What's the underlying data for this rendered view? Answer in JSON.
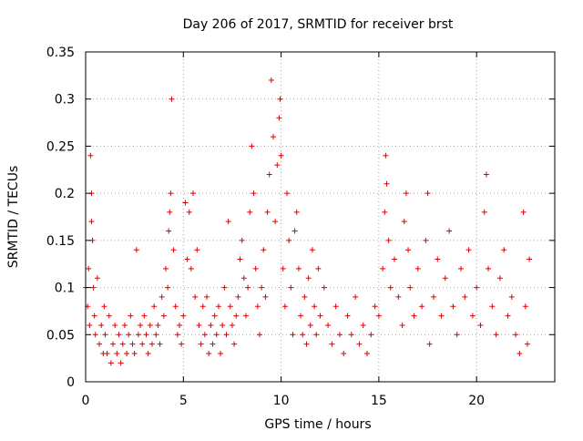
{
  "chart_data": {
    "type": "scatter",
    "title": "Day 206 of 2017, SRMTID for receiver brst",
    "xlabel": "GPS time / hours",
    "ylabel": "SRMTID / TECUs",
    "xlim": [
      0,
      24
    ],
    "ylim": [
      0,
      0.35
    ],
    "xticks": [
      0,
      5,
      10,
      15,
      20
    ],
    "xtick_labels": [
      "0",
      "5",
      "10",
      "15",
      "20"
    ],
    "yticks": [
      0,
      0.05,
      0.1,
      0.15,
      0.2,
      0.25,
      0.3,
      0.35
    ],
    "ytick_labels": [
      "0",
      "0.05",
      "0.1",
      "0.15",
      "0.2",
      "0.25",
      "0.3",
      "0.35"
    ],
    "grid": true,
    "marker": "+",
    "color": "#e00000",
    "series": [
      {
        "name": "SRMTID",
        "points": [
          [
            0.0,
            0.1
          ],
          [
            0.1,
            0.08
          ],
          [
            0.15,
            0.12
          ],
          [
            0.2,
            0.06
          ],
          [
            0.25,
            0.24
          ],
          [
            0.3,
            0.17
          ],
          [
            0.3,
            0.2
          ],
          [
            0.35,
            0.15
          ],
          [
            0.4,
            0.1
          ],
          [
            0.45,
            0.07
          ],
          [
            0.5,
            0.05
          ],
          [
            0.6,
            0.11
          ],
          [
            0.7,
            0.04
          ],
          [
            0.8,
            0.06
          ],
          [
            0.9,
            0.03
          ],
          [
            0.95,
            0.08
          ],
          [
            1.0,
            0.05
          ],
          [
            1.1,
            0.03
          ],
          [
            1.2,
            0.07
          ],
          [
            1.3,
            0.02
          ],
          [
            1.4,
            0.04
          ],
          [
            1.5,
            0.06
          ],
          [
            1.6,
            0.03
          ],
          [
            1.7,
            0.05
          ],
          [
            1.8,
            0.02
          ],
          [
            1.9,
            0.04
          ],
          [
            2.0,
            0.06
          ],
          [
            2.1,
            0.03
          ],
          [
            2.2,
            0.05
          ],
          [
            2.3,
            0.07
          ],
          [
            2.4,
            0.04
          ],
          [
            2.5,
            0.03
          ],
          [
            2.6,
            0.14
          ],
          [
            2.7,
            0.05
          ],
          [
            2.8,
            0.06
          ],
          [
            2.9,
            0.04
          ],
          [
            3.0,
            0.07
          ],
          [
            3.1,
            0.05
          ],
          [
            3.2,
            0.03
          ],
          [
            3.3,
            0.06
          ],
          [
            3.4,
            0.04
          ],
          [
            3.5,
            0.08
          ],
          [
            3.6,
            0.05
          ],
          [
            3.7,
            0.06
          ],
          [
            3.8,
            0.04
          ],
          [
            3.9,
            0.09
          ],
          [
            4.0,
            0.07
          ],
          [
            4.1,
            0.12
          ],
          [
            4.2,
            0.1
          ],
          [
            4.25,
            0.16
          ],
          [
            4.3,
            0.18
          ],
          [
            4.35,
            0.2
          ],
          [
            4.4,
            0.3
          ],
          [
            4.5,
            0.14
          ],
          [
            4.6,
            0.08
          ],
          [
            4.7,
            0.05
          ],
          [
            4.8,
            0.06
          ],
          [
            4.9,
            0.04
          ],
          [
            5.0,
            0.07
          ],
          [
            5.1,
            0.19
          ],
          [
            5.2,
            0.13
          ],
          [
            5.3,
            0.18
          ],
          [
            5.4,
            0.12
          ],
          [
            5.5,
            0.2
          ],
          [
            5.6,
            0.09
          ],
          [
            5.7,
            0.14
          ],
          [
            5.8,
            0.06
          ],
          [
            5.9,
            0.04
          ],
          [
            6.0,
            0.08
          ],
          [
            6.1,
            0.05
          ],
          [
            6.2,
            0.09
          ],
          [
            6.3,
            0.03
          ],
          [
            6.4,
            0.06
          ],
          [
            6.5,
            0.04
          ],
          [
            6.6,
            0.07
          ],
          [
            6.7,
            0.05
          ],
          [
            6.8,
            0.08
          ],
          [
            6.9,
            0.03
          ],
          [
            7.0,
            0.06
          ],
          [
            7.1,
            0.1
          ],
          [
            7.2,
            0.05
          ],
          [
            7.3,
            0.17
          ],
          [
            7.4,
            0.08
          ],
          [
            7.5,
            0.06
          ],
          [
            7.6,
            0.04
          ],
          [
            7.7,
            0.07
          ],
          [
            7.8,
            0.09
          ],
          [
            7.9,
            0.13
          ],
          [
            8.0,
            0.15
          ],
          [
            8.1,
            0.11
          ],
          [
            8.2,
            0.07
          ],
          [
            8.3,
            0.1
          ],
          [
            8.4,
            0.18
          ],
          [
            8.5,
            0.25
          ],
          [
            8.6,
            0.2
          ],
          [
            8.7,
            0.12
          ],
          [
            8.8,
            0.08
          ],
          [
            8.9,
            0.05
          ],
          [
            9.0,
            0.1
          ],
          [
            9.1,
            0.14
          ],
          [
            9.2,
            0.09
          ],
          [
            9.3,
            0.18
          ],
          [
            9.4,
            0.22
          ],
          [
            9.5,
            0.32
          ],
          [
            9.6,
            0.26
          ],
          [
            9.7,
            0.17
          ],
          [
            9.8,
            0.23
          ],
          [
            9.9,
            0.28
          ],
          [
            9.95,
            0.3
          ],
          [
            10.0,
            0.24
          ],
          [
            10.1,
            0.12
          ],
          [
            10.2,
            0.08
          ],
          [
            10.3,
            0.2
          ],
          [
            10.4,
            0.15
          ],
          [
            10.5,
            0.1
          ],
          [
            10.6,
            0.05
          ],
          [
            10.7,
            0.16
          ],
          [
            10.8,
            0.18
          ],
          [
            10.9,
            0.12
          ],
          [
            11.0,
            0.07
          ],
          [
            11.1,
            0.05
          ],
          [
            11.2,
            0.09
          ],
          [
            11.3,
            0.04
          ],
          [
            11.4,
            0.11
          ],
          [
            11.5,
            0.06
          ],
          [
            11.6,
            0.14
          ],
          [
            11.7,
            0.08
          ],
          [
            11.8,
            0.05
          ],
          [
            11.9,
            0.12
          ],
          [
            12.0,
            0.07
          ],
          [
            12.2,
            0.1
          ],
          [
            12.4,
            0.06
          ],
          [
            12.6,
            0.04
          ],
          [
            12.8,
            0.08
          ],
          [
            13.0,
            0.05
          ],
          [
            13.2,
            0.03
          ],
          [
            13.4,
            0.07
          ],
          [
            13.6,
            0.05
          ],
          [
            13.8,
            0.09
          ],
          [
            14.0,
            0.04
          ],
          [
            14.2,
            0.06
          ],
          [
            14.4,
            0.03
          ],
          [
            14.6,
            0.05
          ],
          [
            14.8,
            0.08
          ],
          [
            15.0,
            0.07
          ],
          [
            15.2,
            0.12
          ],
          [
            15.3,
            0.18
          ],
          [
            15.35,
            0.24
          ],
          [
            15.4,
            0.21
          ],
          [
            15.5,
            0.15
          ],
          [
            15.6,
            0.1
          ],
          [
            15.8,
            0.13
          ],
          [
            16.0,
            0.09
          ],
          [
            16.2,
            0.06
          ],
          [
            16.3,
            0.17
          ],
          [
            16.4,
            0.2
          ],
          [
            16.5,
            0.14
          ],
          [
            16.6,
            0.1
          ],
          [
            16.8,
            0.07
          ],
          [
            17.0,
            0.12
          ],
          [
            17.2,
            0.08
          ],
          [
            17.4,
            0.15
          ],
          [
            17.5,
            0.2
          ],
          [
            17.6,
            0.04
          ],
          [
            17.8,
            0.09
          ],
          [
            18.0,
            0.13
          ],
          [
            18.2,
            0.07
          ],
          [
            18.4,
            0.11
          ],
          [
            18.6,
            0.16
          ],
          [
            18.8,
            0.08
          ],
          [
            19.0,
            0.05
          ],
          [
            19.2,
            0.12
          ],
          [
            19.4,
            0.09
          ],
          [
            19.6,
            0.14
          ],
          [
            19.8,
            0.07
          ],
          [
            20.0,
            0.1
          ],
          [
            20.2,
            0.06
          ],
          [
            20.4,
            0.18
          ],
          [
            20.5,
            0.22
          ],
          [
            20.6,
            0.12
          ],
          [
            20.8,
            0.08
          ],
          [
            21.0,
            0.05
          ],
          [
            21.2,
            0.11
          ],
          [
            21.4,
            0.14
          ],
          [
            21.6,
            0.07
          ],
          [
            21.8,
            0.09
          ],
          [
            22.0,
            0.05
          ],
          [
            22.2,
            0.03
          ],
          [
            22.4,
            0.18
          ],
          [
            22.5,
            0.08
          ],
          [
            22.6,
            0.04
          ],
          [
            22.7,
            0.13
          ]
        ]
      }
    ]
  }
}
